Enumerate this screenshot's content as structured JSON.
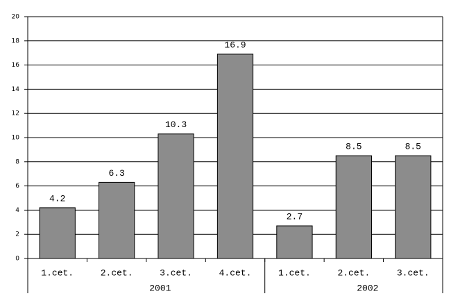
{
  "chart_data": {
    "type": "bar",
    "categories": [
      "1.cet.",
      "2.cet.",
      "3.cet.",
      "4.cet.",
      "1.cet.",
      "2.cet.",
      "3.cet."
    ],
    "groups": [
      {
        "label": "2001",
        "size": 4
      },
      {
        "label": "2002",
        "size": 3
      }
    ],
    "values": [
      4.2,
      6.3,
      10.3,
      16.9,
      2.7,
      8.5,
      8.5
    ],
    "color": "#8c8c8c",
    "ylim": [
      0,
      20
    ],
    "yticks": [
      0,
      2,
      4,
      6,
      8,
      10,
      12,
      14,
      16,
      18,
      20
    ],
    "grid": true
  }
}
